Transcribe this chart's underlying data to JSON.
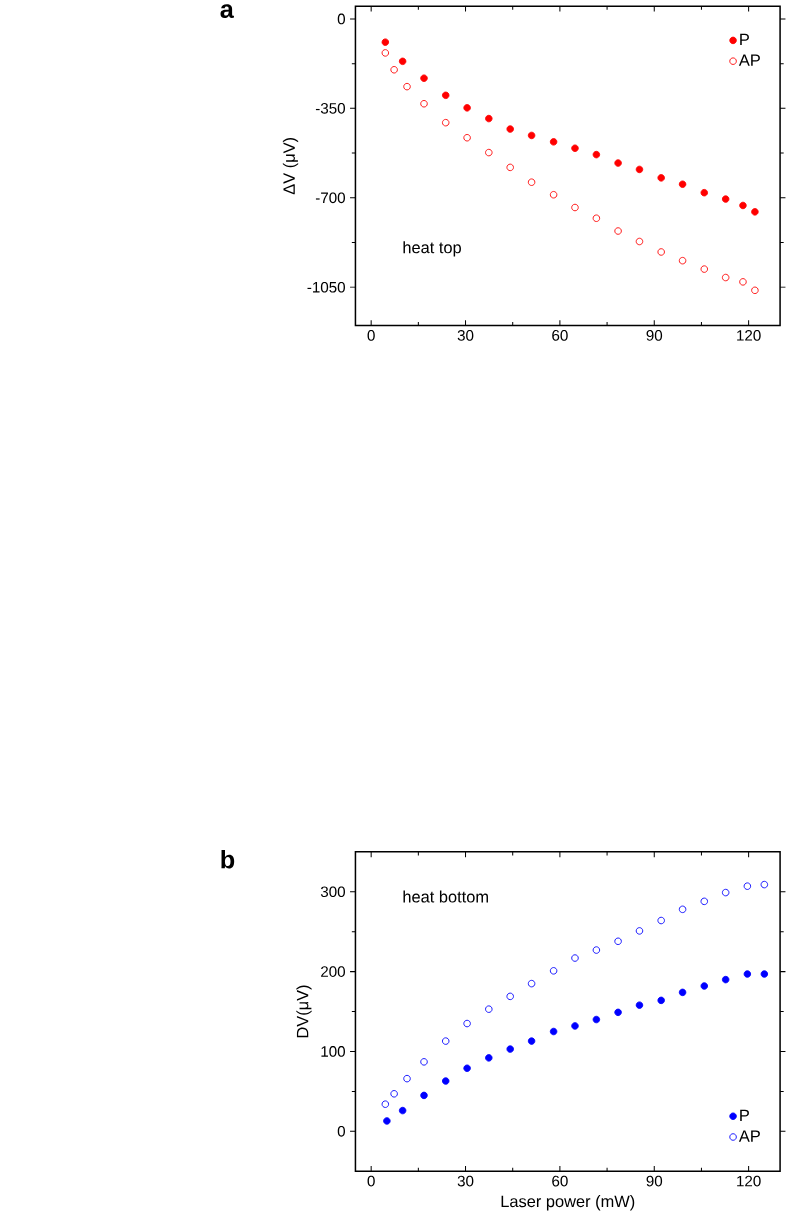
{
  "chart_data": [
    {
      "type": "scatter",
      "ylabel": "ΔV (μV)",
      "annotations": [
        "a",
        "heat top"
      ],
      "xlim": [
        -5,
        130
      ],
      "ylim": [
        -1200,
        50
      ],
      "xticks": [
        0,
        30,
        60,
        90,
        120
      ],
      "yticks": [
        0,
        -350,
        -700,
        -1050
      ],
      "marker": "circle",
      "legend": "top right",
      "grid": false,
      "series": [
        {
          "name": "P",
          "color": "#ff0000",
          "x": [
            4.5,
            10,
            16.8,
            23.7,
            30.5,
            37.4,
            44.2,
            51,
            58,
            64.8,
            71.6,
            78.5,
            85.3,
            92.2,
            99,
            105.9,
            112.7,
            118.2,
            122
          ],
          "values": [
            -91,
            -166,
            -232,
            -299,
            -348,
            -390,
            -431,
            -456,
            -481,
            -506,
            -531,
            -564,
            -589,
            -622,
            -647,
            -680,
            -705,
            -730,
            -755
          ]
        },
        {
          "name": "AP",
          "color": "#ff0000",
          "x": [
            4.5,
            7.3,
            11.4,
            16.8,
            23.7,
            30.5,
            37.4,
            44.2,
            51,
            58,
            64.8,
            71.6,
            78.5,
            85.3,
            92.2,
            99,
            105.9,
            112.7,
            118.2,
            122
          ],
          "values": [
            -133,
            -199,
            -265,
            -332,
            -406,
            -465,
            -523,
            -581,
            -639,
            -688,
            -738,
            -780,
            -830,
            -871,
            -912,
            -946,
            -979,
            -1012,
            -1029,
            -1062
          ]
        }
      ]
    },
    {
      "type": "scatter",
      "ylabel": "DV(μV)",
      "xlabel": "Laser power (mW)",
      "annotations": [
        "b",
        "heat bottom"
      ],
      "xlim": [
        -5,
        130
      ],
      "ylim": [
        -50,
        350
      ],
      "xticks": [
        0,
        30,
        60,
        90,
        120
      ],
      "yticks": [
        0,
        100,
        200,
        300
      ],
      "marker": "circle",
      "legend": "bottom right",
      "grid": false,
      "series": [
        {
          "name": "P",
          "color": "#0000ff",
          "x": [
            5,
            10,
            16.8,
            23.7,
            30.5,
            37.4,
            44.2,
            51,
            58,
            64.8,
            71.6,
            78.5,
            85.3,
            92.2,
            99,
            105.9,
            112.7,
            119.6,
            125
          ],
          "values": [
            13,
            26,
            45,
            63,
            79,
            92,
            103,
            113,
            125,
            132,
            140,
            149,
            158,
            164,
            174,
            182,
            190,
            197,
            197
          ]
        },
        {
          "name": "AP",
          "color": "#0000ff",
          "x": [
            4.5,
            7.3,
            11.4,
            16.8,
            23.7,
            30.5,
            37.4,
            44.2,
            51,
            58,
            64.8,
            71.6,
            78.5,
            85.3,
            92.2,
            99,
            105.9,
            112.7,
            119.6,
            125
          ],
          "values": [
            34,
            47,
            66,
            87,
            113,
            135,
            153,
            169,
            185,
            201,
            217,
            227,
            238,
            251,
            264,
            278,
            288,
            299,
            307,
            309
          ]
        }
      ]
    }
  ]
}
